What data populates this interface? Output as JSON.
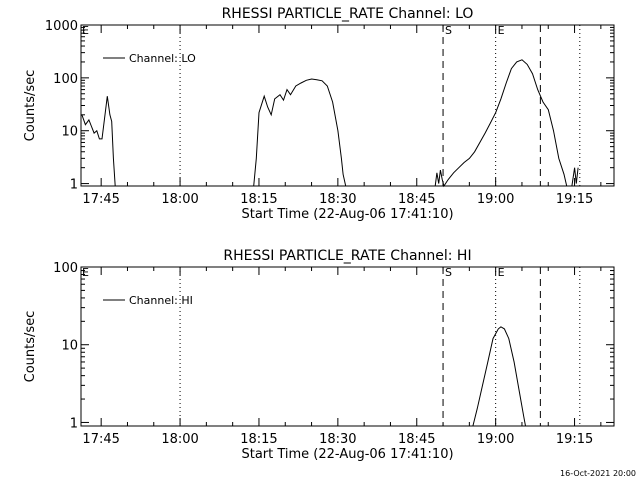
{
  "footer": {
    "timestamp": "16-Oct-2021 20:00"
  },
  "chart_data": [
    {
      "type": "line",
      "title": "RHESSI PARTICLE_RATE Channel: LO",
      "xlabel": "Start Time (22-Aug-06 17:41:10)",
      "ylabel": "Counts/sec",
      "yscale": "log",
      "ylim": [
        0.9,
        1000
      ],
      "xlim": [
        "17:41:10",
        "19:22:30"
      ],
      "x_ticks": [
        "17:45",
        "18:00",
        "18:15",
        "18:30",
        "18:45",
        "19:00",
        "19:15"
      ],
      "y_ticks": [
        "1",
        "10",
        "100",
        "1000"
      ],
      "legend": {
        "position": "top-left",
        "entries": [
          "Channel: LO"
        ]
      },
      "markers": [
        {
          "label": "S",
          "time": "18:50:00",
          "style": "dashed"
        },
        {
          "label": "E",
          "time": "19:00:00",
          "style": "dotted"
        },
        {
          "label": "",
          "time": "19:08:30",
          "style": "dashed"
        },
        {
          "label": "",
          "time": "18:00:00",
          "style": "dotted"
        },
        {
          "label": "",
          "time": "19:16:00",
          "style": "dotted"
        }
      ],
      "corner_mark": "E",
      "series": [
        {
          "name": "Channel: LO",
          "segments": [
            [
              [
                "17:41:20",
                20
              ],
              [
                "17:42:00",
                13
              ],
              [
                "17:42:40",
                16
              ],
              [
                "17:43:10",
                12
              ],
              [
                "17:43:40",
                9
              ],
              [
                "17:44:10",
                10
              ],
              [
                "17:44:40",
                7
              ],
              [
                "17:45:10",
                7
              ],
              [
                "17:45:40",
                18
              ],
              [
                "17:46:10",
                45
              ],
              [
                "17:46:40",
                20
              ],
              [
                "17:47:00",
                15
              ],
              [
                "17:47:20",
                3
              ],
              [
                "17:47:40",
                0.9
              ]
            ],
            [
              [
                "18:14:00",
                0.9
              ],
              [
                "18:14:30",
                3
              ],
              [
                "18:15:00",
                22
              ],
              [
                "18:16:00",
                45
              ],
              [
                "18:16:40",
                28
              ],
              [
                "18:17:20",
                20
              ],
              [
                "18:18:00",
                40
              ],
              [
                "18:19:00",
                48
              ],
              [
                "18:19:40",
                38
              ],
              [
                "18:20:20",
                60
              ],
              [
                "18:21:00",
                48
              ],
              [
                "18:22:00",
                70
              ],
              [
                "18:23:00",
                80
              ],
              [
                "18:24:00",
                90
              ],
              [
                "18:25:00",
                95
              ],
              [
                "18:26:00",
                92
              ],
              [
                "18:27:00",
                88
              ],
              [
                "18:28:00",
                70
              ],
              [
                "18:29:00",
                35
              ],
              [
                "18:30:00",
                10
              ],
              [
                "18:30:40",
                3
              ],
              [
                "18:31:00",
                1.5
              ],
              [
                "18:31:30",
                0.9
              ]
            ],
            [
              [
                "18:48:30",
                0.9
              ],
              [
                "18:48:50",
                1.6
              ],
              [
                "18:49:10",
                1
              ],
              [
                "18:49:30",
                1.8
              ],
              [
                "18:49:50",
                1.2
              ],
              [
                "18:50:10",
                0.9
              ],
              [
                "18:51:00",
                1.2
              ],
              [
                "18:52:00",
                1.6
              ],
              [
                "18:53:00",
                2
              ],
              [
                "18:54:00",
                2.5
              ],
              [
                "18:55:00",
                3
              ],
              [
                "18:56:00",
                4
              ],
              [
                "18:57:00",
                6
              ],
              [
                "18:58:00",
                9
              ],
              [
                "18:59:00",
                14
              ],
              [
                "19:00:00",
                22
              ],
              [
                "19:01:00",
                40
              ],
              [
                "19:02:00",
                80
              ],
              [
                "19:03:00",
                150
              ],
              [
                "19:04:00",
                200
              ],
              [
                "19:05:00",
                220
              ],
              [
                "19:06:00",
                180
              ],
              [
                "19:07:00",
                120
              ],
              [
                "19:08:00",
                60
              ],
              [
                "19:09:00",
                35
              ],
              [
                "19:10:00",
                25
              ],
              [
                "19:11:00",
                10
              ],
              [
                "19:12:00",
                3
              ],
              [
                "19:13:00",
                1.5
              ],
              [
                "19:13:30",
                0.9
              ]
            ],
            [
              [
                "19:14:30",
                0.9
              ],
              [
                "19:15:00",
                2
              ],
              [
                "19:15:20",
                1
              ],
              [
                "19:15:40",
                2
              ]
            ]
          ]
        }
      ]
    },
    {
      "type": "line",
      "title": "RHESSI PARTICLE_RATE Channel: HI",
      "xlabel": "Start Time (22-Aug-06 17:41:10)",
      "ylabel": "Counts/sec",
      "yscale": "log",
      "ylim": [
        0.9,
        100
      ],
      "xlim": [
        "17:41:10",
        "19:22:30"
      ],
      "x_ticks": [
        "17:45",
        "18:00",
        "18:15",
        "18:30",
        "18:45",
        "19:00",
        "19:15"
      ],
      "y_ticks": [
        "1",
        "10",
        "100"
      ],
      "legend": {
        "position": "top-left",
        "entries": [
          "Channel: HI"
        ]
      },
      "markers": [
        {
          "label": "S",
          "time": "18:50:00",
          "style": "dashed"
        },
        {
          "label": "E",
          "time": "19:00:00",
          "style": "dotted"
        },
        {
          "label": "",
          "time": "19:08:30",
          "style": "dashed"
        },
        {
          "label": "",
          "time": "18:00:00",
          "style": "dotted"
        },
        {
          "label": "",
          "time": "19:16:00",
          "style": "dotted"
        }
      ],
      "corner_mark": "E",
      "series": [
        {
          "name": "Channel: HI",
          "segments": [
            [
              [
                "18:55:40",
                0.9
              ],
              [
                "18:56:30",
                1.5
              ],
              [
                "18:57:30",
                3
              ],
              [
                "18:58:30",
                6
              ],
              [
                "18:59:30",
                12
              ],
              [
                "19:00:30",
                16
              ],
              [
                "19:01:00",
                17
              ],
              [
                "19:01:40",
                16
              ],
              [
                "19:02:30",
                12
              ],
              [
                "19:03:30",
                6
              ],
              [
                "19:04:30",
                2.5
              ],
              [
                "19:05:20",
                1.2
              ],
              [
                "19:05:40",
                0.9
              ]
            ]
          ]
        }
      ]
    }
  ]
}
